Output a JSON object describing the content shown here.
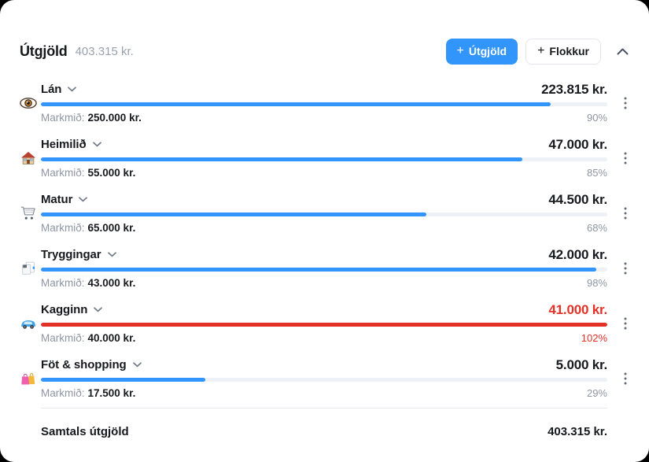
{
  "header": {
    "title": "Útgjöld",
    "total": "403.315 kr.",
    "buttons": {
      "add_expense": {
        "icon_glyph": "+",
        "label": "Útgjöld"
      },
      "add_category": {
        "icon_glyph": "+",
        "label": "Flokkur"
      }
    }
  },
  "rows": [
    {
      "icon": "eye-icon",
      "name": "Lán",
      "amount": "223.815 kr.",
      "goal_label": "Markmið:",
      "goal": "250.000 kr.",
      "percent": 90,
      "percent_label": "90%",
      "over": false
    },
    {
      "icon": "house-icon",
      "name": "Heimilið",
      "amount": "47.000 kr.",
      "goal_label": "Markmið:",
      "goal": "55.000 kr.",
      "percent": 85,
      "percent_label": "85%",
      "over": false
    },
    {
      "icon": "shopping-cart-icon",
      "name": "Matur",
      "amount": "44.500 kr.",
      "goal_label": "Markmið:",
      "goal": "65.000 kr.",
      "percent": 68,
      "percent_label": "68%",
      "over": false
    },
    {
      "icon": "documents-icon",
      "name": "Tryggingar",
      "amount": "42.000 kr.",
      "goal_label": "Markmið:",
      "goal": "43.000 kr.",
      "percent": 98,
      "percent_label": "98%",
      "over": false
    },
    {
      "icon": "car-icon",
      "name": "Kagginn",
      "amount": "41.000 kr.",
      "goal_label": "Markmið:",
      "goal": "40.000 kr.",
      "percent": 102,
      "percent_label": "102%",
      "over": true
    },
    {
      "icon": "shopping-bags-icon",
      "name": "Föt & shopping",
      "amount": "5.000 kr.",
      "goal_label": "Markmið:",
      "goal": "17.500 kr.",
      "percent": 29,
      "percent_label": "29%",
      "over": false
    }
  ],
  "footer": {
    "label": "Samtals útgjöld",
    "total": "403.315 kr."
  },
  "colors": {
    "accent": "#3195fb",
    "danger": "#e33127",
    "track": "#eef1f6",
    "muted": "#8e96a3",
    "text": "#17191d"
  }
}
